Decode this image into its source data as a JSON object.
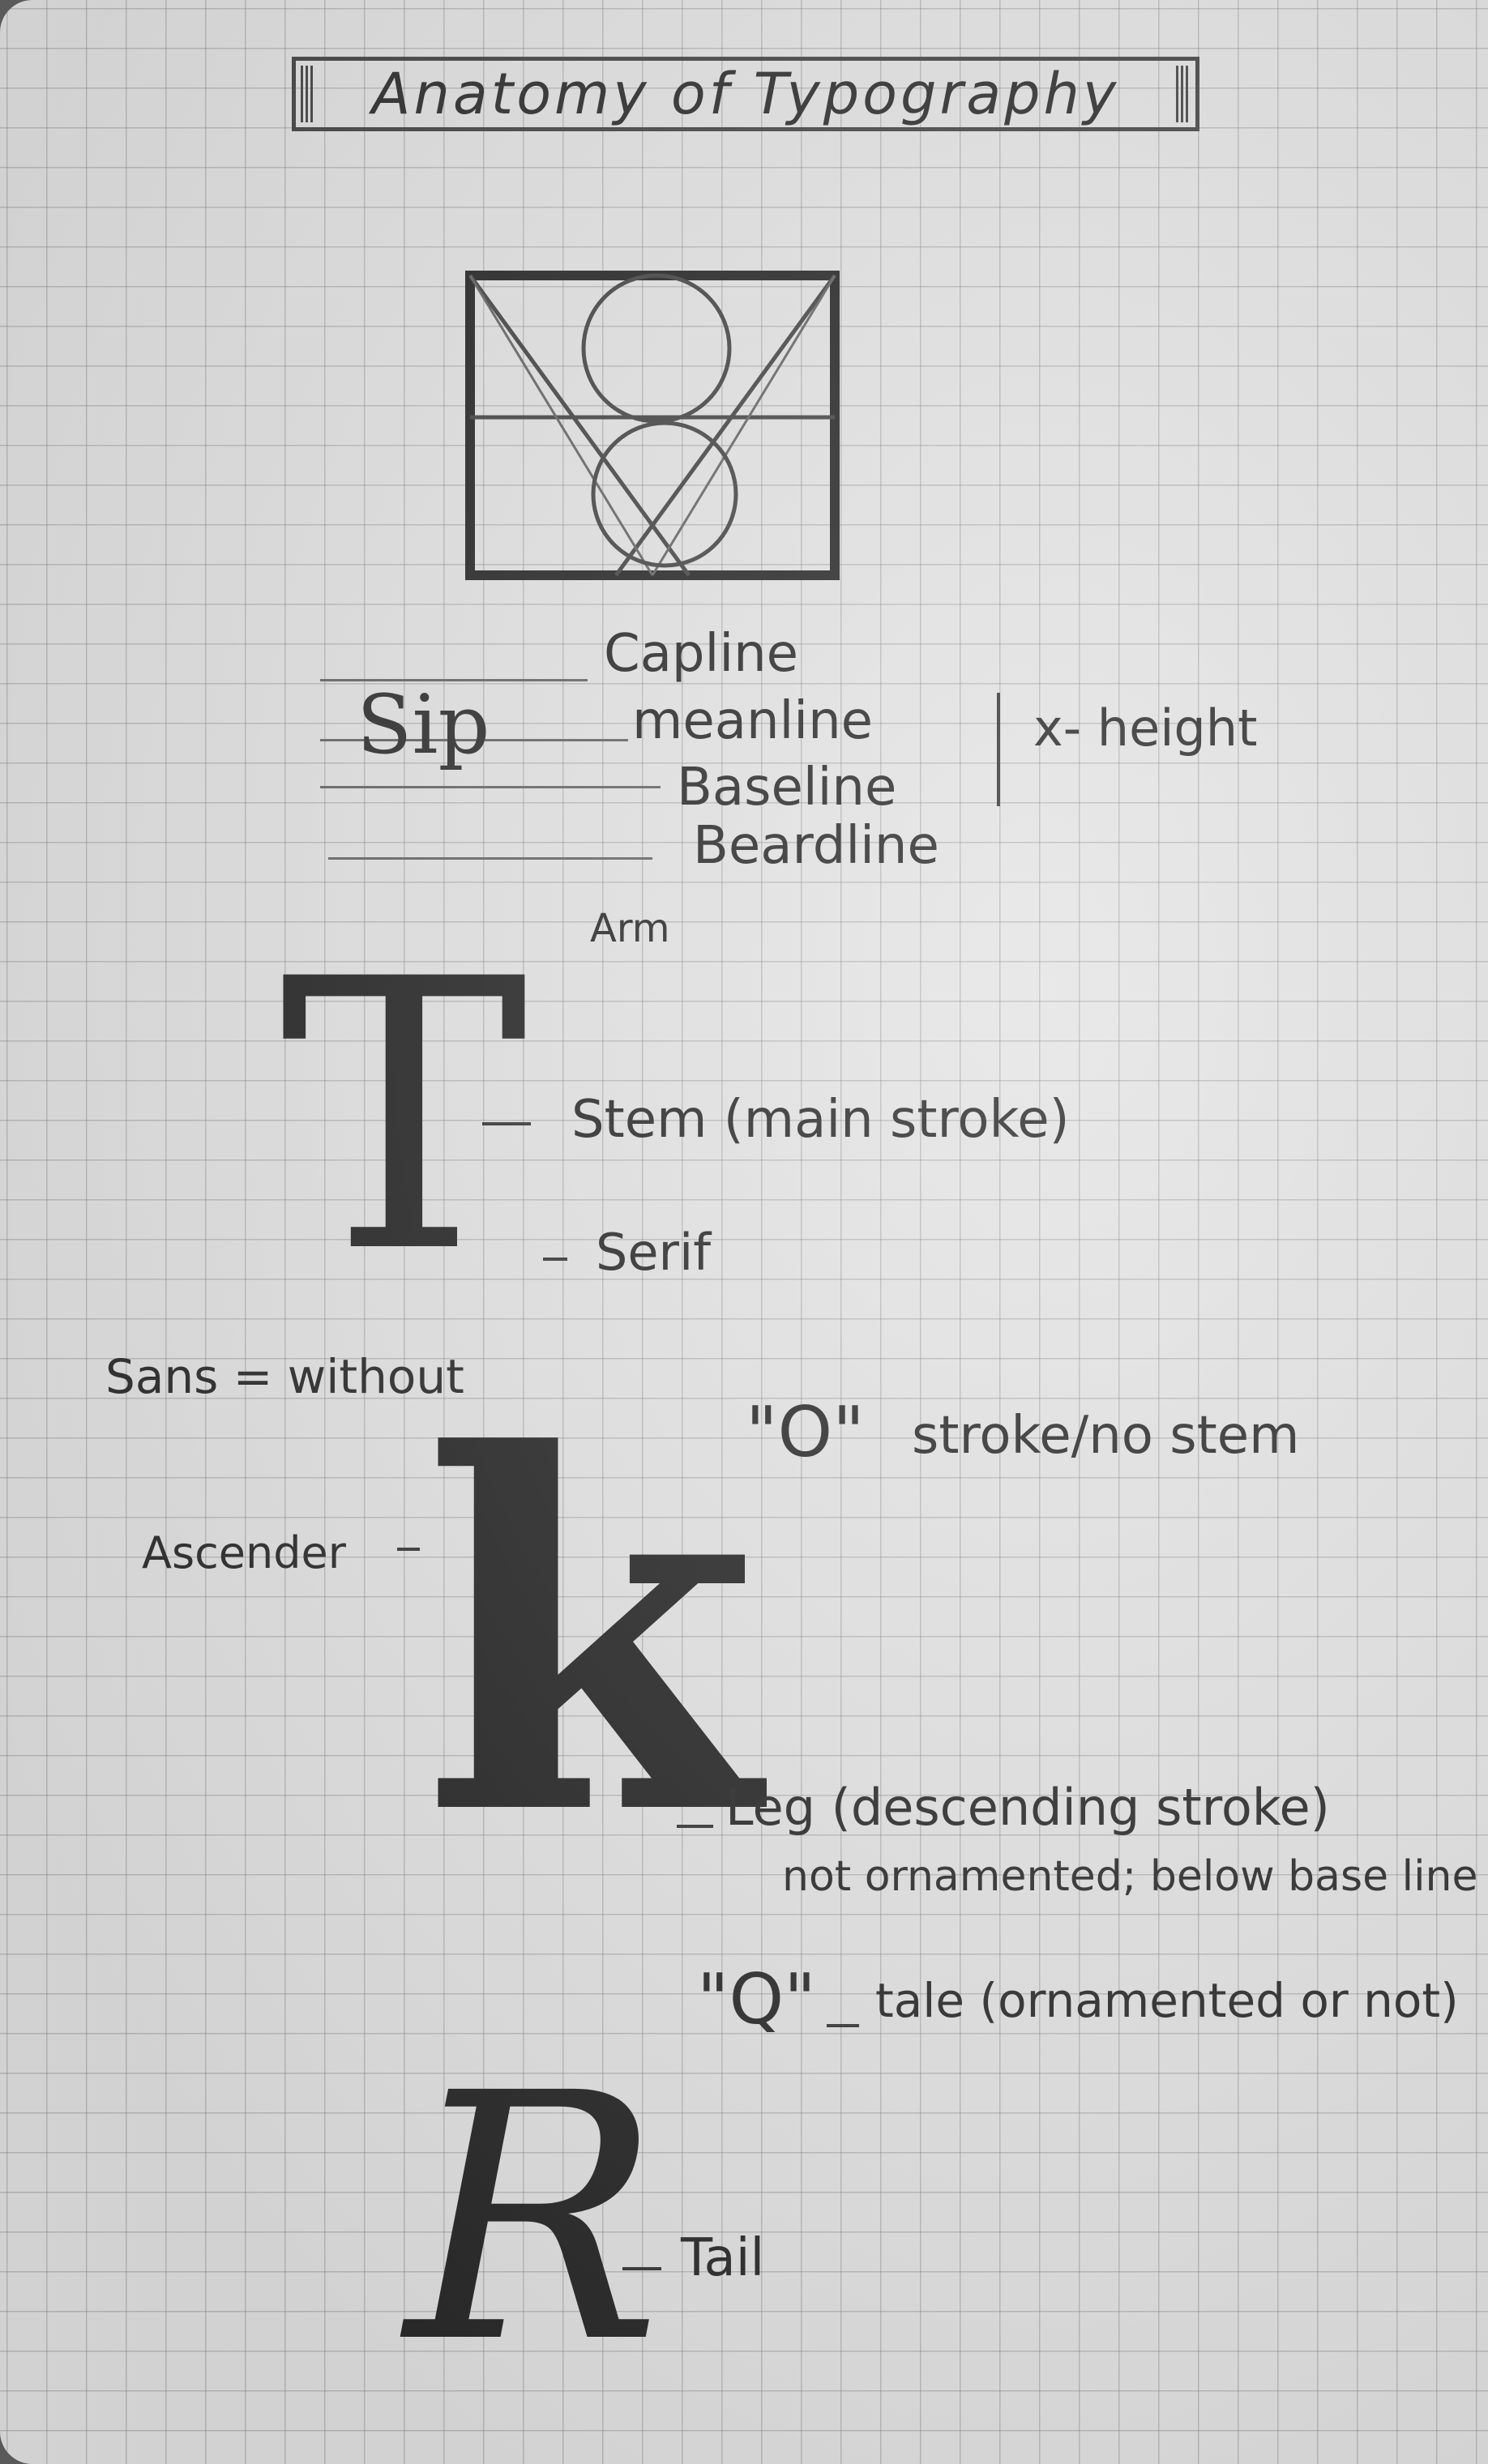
{
  "title": "Anatomy of Typography",
  "guidelines": {
    "sample_word": "Sip",
    "capline": "Capline",
    "meanline": "meanline",
    "baseline": "Baseline",
    "beardline": "Beardline",
    "x_height": "x- height"
  },
  "letter_t": {
    "glyph": "T",
    "arm": "Arm",
    "stem": "Stem (main stroke)",
    "serif": "Serif"
  },
  "notes": {
    "sans": "Sans = without",
    "o_glyph": "\"O\"",
    "o_note": "stroke/no stem"
  },
  "letter_k": {
    "glyph": "k",
    "ascender": "Ascender",
    "leg": "Leg (descending stroke)",
    "leg_note": "not ornamented; below base line"
  },
  "q_note": {
    "glyph": "\"Q\"",
    "text": "tale (ornamented or not)"
  },
  "letter_r": {
    "glyph": "R",
    "tail": "Tail"
  }
}
